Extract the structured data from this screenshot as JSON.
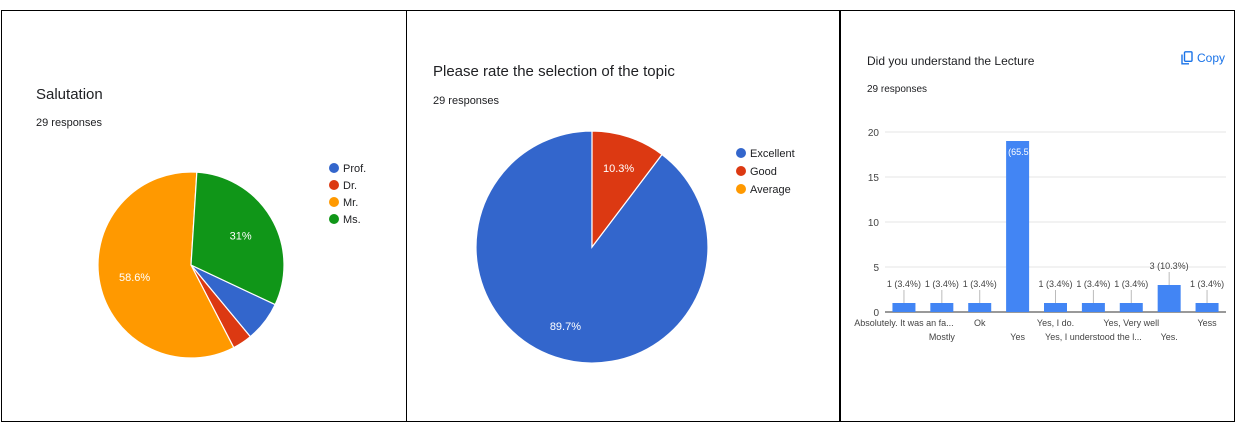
{
  "panels": [
    {
      "title": "Salutation",
      "responses": "29 responses"
    },
    {
      "title": "Please rate the selection of the topic",
      "responses": "29 responses"
    },
    {
      "title": "Did you understand the Lecture",
      "responses": "29 responses",
      "copy_label": "Copy"
    }
  ],
  "chart_data": [
    {
      "type": "pie",
      "title": "Salutation",
      "subtitle": "29 responses",
      "labels": [
        "Prof.",
        "Dr.",
        "Mr.",
        "Ms."
      ],
      "values": [
        7.0,
        3.4,
        58.6,
        31.0
      ],
      "data_labels": [
        "",
        "",
        "58.6%",
        "31%"
      ],
      "colors": [
        "#3366cc",
        "#dc3912",
        "#ff9900",
        "#109618"
      ],
      "legend": "right"
    },
    {
      "type": "pie",
      "title": "Please rate the selection of the topic",
      "subtitle": "29 responses",
      "labels": [
        "Excellent",
        "Good",
        "Average"
      ],
      "values": [
        89.7,
        10.3,
        0
      ],
      "data_labels": [
        "89.7%",
        "10.3%",
        ""
      ],
      "colors": [
        "#3366cc",
        "#dc3912",
        "#ff9900"
      ],
      "legend": "right"
    },
    {
      "type": "bar",
      "title": "Did you understand the Lecture",
      "subtitle": "29 responses",
      "categories": [
        "Absolutely. It was an fa...",
        "Mostly",
        "Ok",
        "Yes",
        "Yes, I do.",
        "Yes, I understood the l...",
        "Yes, Very well",
        "Yes.",
        "Yess"
      ],
      "values": [
        1,
        1,
        1,
        19,
        1,
        1,
        1,
        3,
        1
      ],
      "data_labels": [
        "1 (3.4%)",
        "1 (3.4%)",
        "1 (3.4%)",
        "19 (65.5%)",
        "1 (3.4%)",
        "1 (3.4%)",
        "1 (3.4%)",
        "3 (10.3%)",
        "1 (3.4%)"
      ],
      "yticks": [
        0,
        5,
        10,
        15,
        20
      ],
      "ylim": [
        0,
        20
      ],
      "color": "#4285f4",
      "grid": true
    }
  ]
}
